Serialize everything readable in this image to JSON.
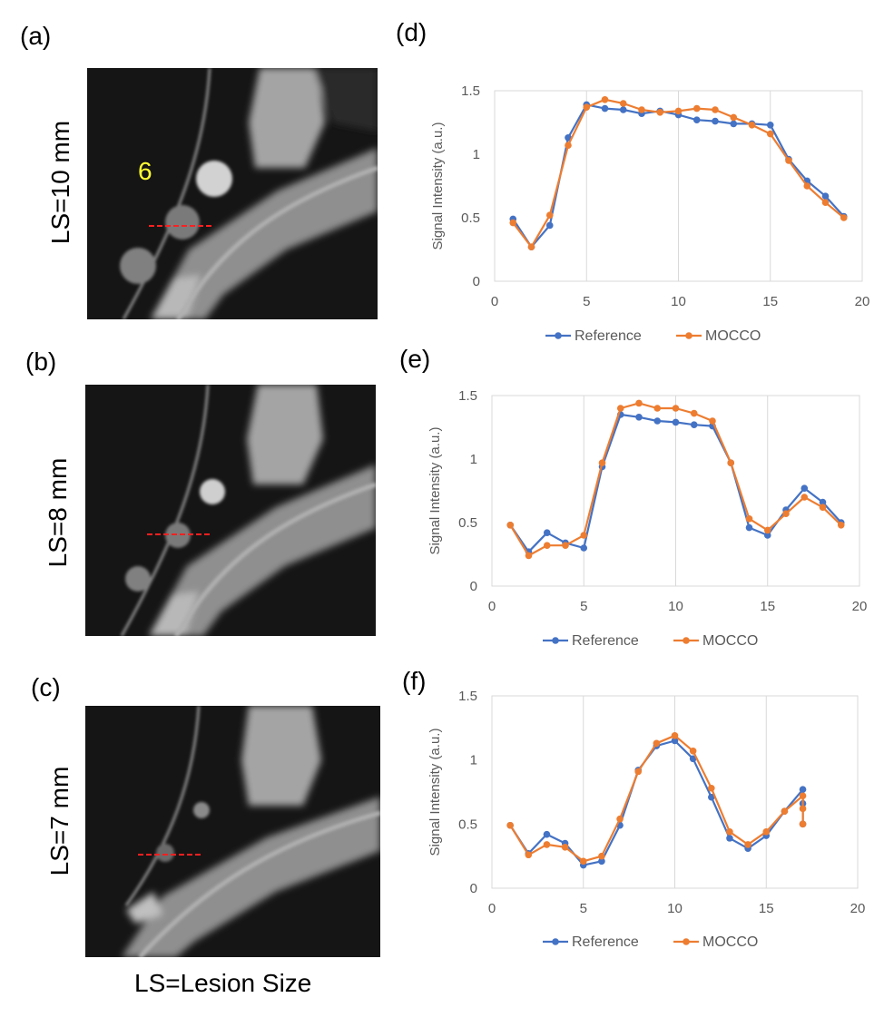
{
  "panel_labels": {
    "a": "(a)",
    "b": "(b)",
    "c": "(c)",
    "d": "(d)",
    "e": "(e)",
    "f": "(f)"
  },
  "images": [
    {
      "side_label": "LS=10 mm",
      "lesion_number": "6",
      "lesion_number_color": "#ffff33"
    },
    {
      "side_label": "LS=8 mm"
    },
    {
      "side_label": "LS=7 mm"
    }
  ],
  "footer": "LS=Lesion Size",
  "colors": {
    "reference": "#4472c4",
    "mocco": "#ed7d31",
    "grid": "#d9d9d9",
    "profile_line": "#ff2020"
  },
  "chart_data": [
    {
      "type": "line",
      "title": "",
      "xlabel": "",
      "ylabel": "Signal Intensity (a.u.)",
      "xlim": [
        0,
        20
      ],
      "ylim": [
        0,
        1.5
      ],
      "xticks": [
        "0",
        "5",
        "10",
        "15",
        "20"
      ],
      "yticks": [
        "0",
        "0.5",
        "1",
        "1.5"
      ],
      "grid": "vertical",
      "legend": "bottom",
      "x": [
        1,
        2,
        3,
        4,
        5,
        6,
        7,
        8,
        9,
        10,
        11,
        12,
        13,
        14,
        15,
        16,
        17,
        18,
        19
      ],
      "series": [
        {
          "name": "Reference",
          "values": [
            0.49,
            0.27,
            0.44,
            1.13,
            1.39,
            1.36,
            1.35,
            1.32,
            1.34,
            1.31,
            1.27,
            1.26,
            1.24,
            1.24,
            1.23,
            0.96,
            0.79,
            0.67,
            0.51
          ]
        },
        {
          "name": "MOCCO",
          "values": [
            0.46,
            0.27,
            0.52,
            1.07,
            1.37,
            1.43,
            1.4,
            1.35,
            1.33,
            1.34,
            1.36,
            1.35,
            1.29,
            1.23,
            1.16,
            0.95,
            0.75,
            0.62,
            0.5
          ]
        }
      ]
    },
    {
      "type": "line",
      "title": "",
      "xlabel": "",
      "ylabel": "Signal Intensity (a.u.)",
      "xlim": [
        0,
        20
      ],
      "ylim": [
        0,
        1.5
      ],
      "xticks": [
        "0",
        "5",
        "10",
        "15",
        "20"
      ],
      "yticks": [
        "0",
        "0.5",
        "1",
        "1.5"
      ],
      "grid": "vertical",
      "legend": "bottom",
      "x": [
        1,
        2,
        3,
        4,
        5,
        6,
        7,
        8,
        9,
        10,
        11,
        12,
        13,
        14,
        15,
        16,
        17,
        18,
        19
      ],
      "series": [
        {
          "name": "Reference",
          "values": [
            0.48,
            0.27,
            0.42,
            0.34,
            0.3,
            0.94,
            1.35,
            1.33,
            1.3,
            1.29,
            1.27,
            1.26,
            0.97,
            0.46,
            0.4,
            0.6,
            0.77,
            0.66,
            0.5
          ]
        },
        {
          "name": "MOCCO",
          "values": [
            0.48,
            0.24,
            0.32,
            0.32,
            0.4,
            0.97,
            1.4,
            1.44,
            1.4,
            1.4,
            1.36,
            1.3,
            0.97,
            0.53,
            0.44,
            0.57,
            0.7,
            0.62,
            0.48
          ]
        }
      ]
    },
    {
      "type": "line",
      "title": "",
      "xlabel": "",
      "ylabel": "Signal Intensity (a.u.)",
      "xlim": [
        0,
        20
      ],
      "ylim": [
        0,
        1.5
      ],
      "xticks": [
        "0",
        "5",
        "10",
        "15",
        "20"
      ],
      "yticks": [
        "0",
        "0.5",
        "1",
        "1.5"
      ],
      "grid": "vertical",
      "legend": "bottom",
      "x": [
        1,
        2,
        3,
        4,
        5,
        6,
        7,
        8,
        9,
        10,
        11,
        12,
        13,
        14,
        15,
        16,
        17,
        17,
        17
      ],
      "series": [
        {
          "name": "Reference",
          "values": [
            0.49,
            0.27,
            0.42,
            0.35,
            0.18,
            0.21,
            0.49,
            0.92,
            1.11,
            1.15,
            1.01,
            0.71,
            0.39,
            0.31,
            0.41,
            0.6,
            0.77,
            0.66,
            0.5
          ]
        },
        {
          "name": "MOCCO",
          "values": [
            0.49,
            0.26,
            0.34,
            0.32,
            0.21,
            0.25,
            0.54,
            0.91,
            1.13,
            1.19,
            1.07,
            0.78,
            0.44,
            0.34,
            0.44,
            0.6,
            0.72,
            0.62,
            0.5
          ]
        }
      ]
    }
  ]
}
